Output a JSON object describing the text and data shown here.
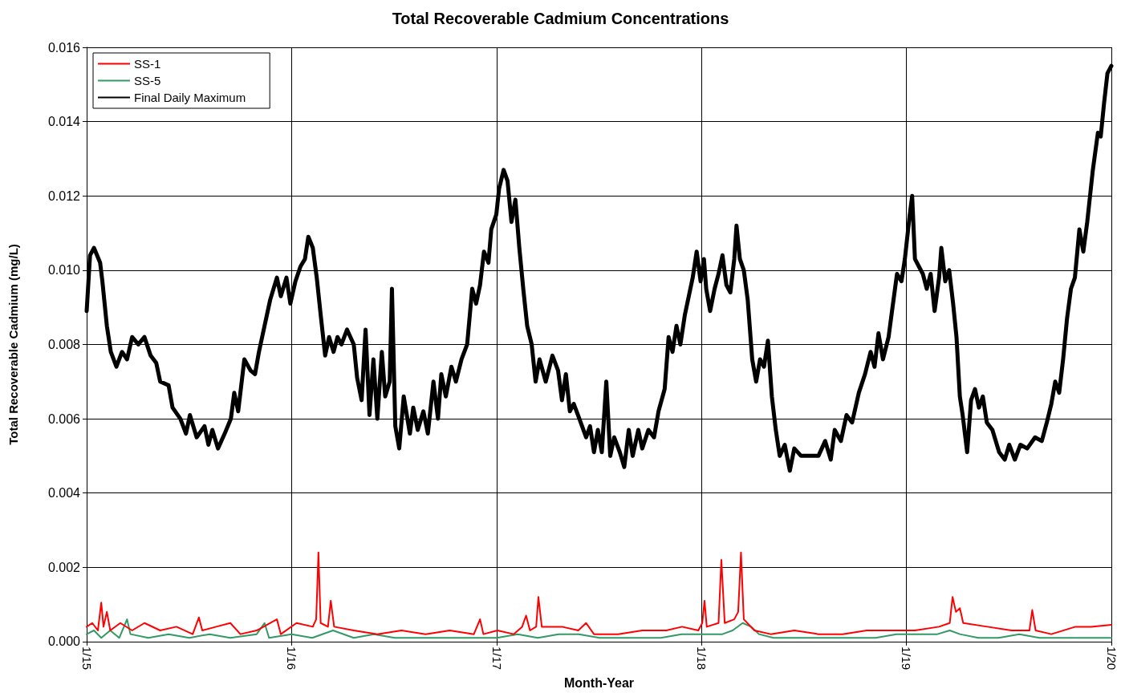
{
  "chart_data": {
    "type": "line",
    "title": "Total Recoverable Cadmium Concentrations",
    "xlabel": "Month-Year",
    "ylabel": "Total Recoverable Cadmium (mg/L)",
    "xlim": [
      "2015-01-01",
      "2020-01-01"
    ],
    "xticks": [
      {
        "value": "2015-01-01",
        "label": "1/15"
      },
      {
        "value": "2016-01-01",
        "label": "1/16"
      },
      {
        "value": "2017-01-01",
        "label": "1/17"
      },
      {
        "value": "2018-01-01",
        "label": "1/18"
      },
      {
        "value": "2019-01-01",
        "label": "1/19"
      },
      {
        "value": "2020-01-01",
        "label": "1/20"
      }
    ],
    "ylim": [
      0,
      0.016
    ],
    "yticks": [
      {
        "value": 0,
        "label": "0.000"
      },
      {
        "value": 0.002,
        "label": "0.002"
      },
      {
        "value": 0.004,
        "label": "0.004"
      },
      {
        "value": 0.006,
        "label": "0.006"
      },
      {
        "value": 0.008,
        "label": "0.008"
      },
      {
        "value": 0.01,
        "label": "0.010"
      },
      {
        "value": 0.012,
        "label": "0.012"
      },
      {
        "value": 0.014,
        "label": "0.014"
      },
      {
        "value": 0.016,
        "label": "0.016"
      }
    ],
    "grid": true,
    "legend": "top left",
    "marker": "none",
    "line_style": "solid",
    "series": [
      {
        "name": "SS-1",
        "color": "#ff0000",
        "x": [
          "2015-01-01",
          "2015-01-11",
          "2015-01-21",
          "2015-01-27",
          "2015-01-31",
          "2015-02-06",
          "2015-02-12",
          "2015-03-02",
          "2015-03-23",
          "2015-04-14",
          "2015-05-12",
          "2015-06-10",
          "2015-07-09",
          "2015-07-20",
          "2015-07-26",
          "2015-08-20",
          "2015-09-14",
          "2015-10-02",
          "2015-10-31",
          "2015-12-06",
          "2015-12-13",
          "2016-01-10",
          "2016-02-08",
          "2016-02-14",
          "2016-02-18",
          "2016-02-22",
          "2016-03-06",
          "2016-03-11",
          "2016-03-17",
          "2016-04-21",
          "2016-06-02",
          "2016-07-15",
          "2016-08-27",
          "2016-10-09",
          "2016-11-21",
          "2016-12-02",
          "2016-12-08",
          "2017-01-02",
          "2017-01-31",
          "2017-02-15",
          "2017-02-22",
          "2017-03-01",
          "2017-03-12",
          "2017-03-16",
          "2017-03-22",
          "2017-04-27",
          "2017-05-26",
          "2017-06-09",
          "2017-06-23",
          "2017-08-05",
          "2017-09-17",
          "2017-10-30",
          "2017-11-27",
          "2017-12-26",
          "2018-01-02",
          "2018-01-06",
          "2018-01-10",
          "2018-01-31",
          "2018-02-05",
          "2018-02-11",
          "2018-02-28",
          "2018-03-07",
          "2018-03-12",
          "2018-03-17",
          "2018-04-05",
          "2018-05-04",
          "2018-06-15",
          "2018-07-28",
          "2018-09-09",
          "2018-10-22",
          "2018-12-04",
          "2019-01-16",
          "2019-02-28",
          "2019-03-19",
          "2019-03-24",
          "2019-03-30",
          "2019-04-06",
          "2019-04-12",
          "2019-05-25",
          "2019-07-07",
          "2019-08-08",
          "2019-08-13",
          "2019-08-19",
          "2019-09-16",
          "2019-10-29",
          "2019-11-26",
          "2020-01-01"
        ],
        "values": [
          0.0004,
          0.0005,
          0.0003,
          0.00105,
          0.0004,
          0.0008,
          0.0003,
          0.0005,
          0.0003,
          0.0005,
          0.0003,
          0.0004,
          0.0002,
          0.00065,
          0.0003,
          0.0004,
          0.0005,
          0.0002,
          0.0003,
          0.0006,
          0.0002,
          0.0005,
          0.0004,
          0.0006,
          0.0024,
          0.0005,
          0.0004,
          0.0011,
          0.0004,
          0.0003,
          0.0002,
          0.0003,
          0.0002,
          0.0003,
          0.0002,
          0.0006,
          0.0002,
          0.0003,
          0.0002,
          0.0004,
          0.0007,
          0.0003,
          0.0004,
          0.0012,
          0.0004,
          0.0004,
          0.0003,
          0.0005,
          0.0002,
          0.0002,
          0.0003,
          0.0003,
          0.0004,
          0.0003,
          0.0005,
          0.0011,
          0.0004,
          0.0005,
          0.0022,
          0.0005,
          0.0006,
          0.0008,
          0.0024,
          0.0006,
          0.0003,
          0.0002,
          0.0003,
          0.0002,
          0.0002,
          0.0003,
          0.0003,
          0.0003,
          0.0004,
          0.0005,
          0.0012,
          0.0008,
          0.0009,
          0.0005,
          0.0004,
          0.0003,
          0.0003,
          0.00085,
          0.0003,
          0.0002,
          0.0004,
          0.0004,
          0.00045
        ]
      },
      {
        "name": "SS-5",
        "color": "#339966",
        "x": [
          "2015-01-01",
          "2015-01-14",
          "2015-01-27",
          "2015-02-12",
          "2015-02-28",
          "2015-03-14",
          "2015-03-20",
          "2015-04-21",
          "2015-05-27",
          "2015-07-03",
          "2015-08-08",
          "2015-09-14",
          "2015-10-31",
          "2015-11-14",
          "2015-11-22",
          "2016-01-01",
          "2016-02-07",
          "2016-03-15",
          "2016-04-21",
          "2016-05-27",
          "2016-07-03",
          "2016-08-08",
          "2016-09-14",
          "2016-10-20",
          "2016-11-26",
          "2017-01-01",
          "2017-02-07",
          "2017-03-15",
          "2017-04-21",
          "2017-05-27",
          "2017-07-03",
          "2017-08-08",
          "2017-09-14",
          "2017-10-20",
          "2017-11-26",
          "2018-01-01",
          "2018-02-07",
          "2018-02-25",
          "2018-03-15",
          "2018-03-30",
          "2018-04-13",
          "2018-05-09",
          "2018-06-14",
          "2018-07-21",
          "2018-08-26",
          "2018-10-02",
          "2018-11-07",
          "2018-12-14",
          "2019-01-19",
          "2019-02-25",
          "2019-03-19",
          "2019-04-06",
          "2019-05-09",
          "2019-06-14",
          "2019-07-21",
          "2019-08-26",
          "2019-10-02",
          "2019-11-07",
          "2019-12-14",
          "2020-01-01"
        ],
        "values": [
          0.0002,
          0.0003,
          0.0001,
          0.0003,
          0.0001,
          0.0006,
          0.0002,
          0.0001,
          0.0002,
          0.0001,
          0.0002,
          0.0001,
          0.0002,
          0.0005,
          0.0001,
          0.0002,
          0.0001,
          0.0003,
          0.0001,
          0.0002,
          0.0001,
          0.0001,
          0.0001,
          0.0001,
          0.0001,
          0.0001,
          0.0002,
          0.0001,
          0.0002,
          0.0002,
          0.0001,
          0.0001,
          0.0001,
          0.0001,
          0.0002,
          0.0002,
          0.0002,
          0.0003,
          0.0005,
          0.0004,
          0.0002,
          0.0001,
          0.0001,
          0.0001,
          0.0001,
          0.0001,
          0.0001,
          0.0002,
          0.0002,
          0.0002,
          0.0003,
          0.0002,
          0.0001,
          0.0001,
          0.0002,
          0.0001,
          0.0001,
          0.0001,
          0.0001,
          0.0001
        ]
      },
      {
        "name": "Final Daily Maximum",
        "color": "#000000",
        "x": [
          "2015-01-01",
          "2015-01-07",
          "2015-01-14",
          "2015-01-25",
          "2015-01-29",
          "2015-02-06",
          "2015-02-13",
          "2015-02-23",
          "2015-03-05",
          "2015-03-14",
          "2015-03-23",
          "2015-04-03",
          "2015-04-14",
          "2015-04-25",
          "2015-05-05",
          "2015-05-12",
          "2015-05-27",
          "2015-06-03",
          "2015-06-17",
          "2015-06-27",
          "2015-07-04",
          "2015-07-16",
          "2015-07-30",
          "2015-08-06",
          "2015-08-13",
          "2015-08-23",
          "2015-09-04",
          "2015-09-15",
          "2015-09-21",
          "2015-09-28",
          "2015-10-09",
          "2015-10-20",
          "2015-10-28",
          "2015-11-04",
          "2015-11-14",
          "2015-11-24",
          "2015-12-06",
          "2015-12-13",
          "2015-12-23",
          "2015-12-30",
          "2016-01-08",
          "2016-01-17",
          "2016-01-25",
          "2016-01-31",
          "2016-02-08",
          "2016-02-15",
          "2016-02-22",
          "2016-03-01",
          "2016-03-08",
          "2016-03-16",
          "2016-03-23",
          "2016-03-30",
          "2016-04-09",
          "2016-04-21",
          "2016-04-27",
          "2016-05-05",
          "2016-05-12",
          "2016-05-19",
          "2016-05-26",
          "2016-06-02",
          "2016-06-10",
          "2016-06-16",
          "2016-06-24",
          "2016-06-28",
          "2016-07-04",
          "2016-07-11",
          "2016-07-19",
          "2016-07-30",
          "2016-08-05",
          "2016-08-13",
          "2016-08-23",
          "2016-08-31",
          "2016-09-10",
          "2016-09-18",
          "2016-09-24",
          "2016-10-02",
          "2016-10-12",
          "2016-10-20",
          "2016-10-30",
          "2016-11-09",
          "2016-11-18",
          "2016-11-25",
          "2016-12-02",
          "2016-12-09",
          "2016-12-17",
          "2016-12-22",
          "2016-12-31",
          "2017-01-05",
          "2017-01-13",
          "2017-01-20",
          "2017-01-27",
          "2017-02-03",
          "2017-02-10",
          "2017-02-17",
          "2017-02-24",
          "2017-03-04",
          "2017-03-11",
          "2017-03-18",
          "2017-03-29",
          "2017-04-10",
          "2017-04-20",
          "2017-04-27",
          "2017-05-04",
          "2017-05-11",
          "2017-05-18",
          "2017-05-28",
          "2017-06-09",
          "2017-06-16",
          "2017-06-23",
          "2017-06-30",
          "2017-07-07",
          "2017-07-15",
          "2017-07-22",
          "2017-07-29",
          "2017-08-08",
          "2017-08-16",
          "2017-08-24",
          "2017-08-31",
          "2017-09-10",
          "2017-09-17",
          "2017-09-28",
          "2017-10-08",
          "2017-10-16",
          "2017-10-27",
          "2017-11-03",
          "2017-11-10",
          "2017-11-17",
          "2017-11-24",
          "2017-12-02",
          "2017-12-09",
          "2017-12-16",
          "2017-12-23",
          "2017-12-30",
          "2018-01-05",
          "2018-01-09",
          "2018-01-16",
          "2018-01-24",
          "2018-01-31",
          "2018-02-07",
          "2018-02-14",
          "2018-02-21",
          "2018-02-28",
          "2018-03-04",
          "2018-03-10",
          "2018-03-17",
          "2018-03-24",
          "2018-04-01",
          "2018-04-08",
          "2018-04-15",
          "2018-04-22",
          "2018-04-29",
          "2018-05-06",
          "2018-05-13",
          "2018-05-20",
          "2018-05-29",
          "2018-06-07",
          "2018-06-15",
          "2018-06-27",
          "2018-07-14",
          "2018-07-28",
          "2018-08-09",
          "2018-08-19",
          "2018-08-26",
          "2018-09-06",
          "2018-09-16",
          "2018-09-26",
          "2018-10-08",
          "2018-10-19",
          "2018-10-29",
          "2018-11-05",
          "2018-11-12",
          "2018-11-20",
          "2018-11-30",
          "2018-12-07",
          "2018-12-15",
          "2018-12-23",
          "2018-12-29",
          "2019-01-06",
          "2019-01-11",
          "2019-01-16",
          "2019-01-23",
          "2019-01-30",
          "2019-02-06",
          "2019-02-13",
          "2019-02-20",
          "2019-02-28",
          "2019-03-04",
          "2019-03-11",
          "2019-03-18",
          "2019-03-25",
          "2019-03-31",
          "2019-04-06",
          "2019-04-11",
          "2019-04-19",
          "2019-04-26",
          "2019-05-03",
          "2019-05-10",
          "2019-05-17",
          "2019-05-24",
          "2019-06-03",
          "2019-06-15",
          "2019-06-25",
          "2019-07-03",
          "2019-07-13",
          "2019-07-23",
          "2019-08-04",
          "2019-08-18",
          "2019-08-30",
          "2019-09-08",
          "2019-09-16",
          "2019-09-23",
          "2019-09-30",
          "2019-10-07",
          "2019-10-14",
          "2019-10-21",
          "2019-10-28",
          "2019-11-05",
          "2019-11-12",
          "2019-11-19",
          "2019-11-29",
          "2019-12-08",
          "2019-12-13",
          "2019-12-19",
          "2019-12-25",
          "2020-01-01"
        ],
        "values": [
          0.0089,
          0.0104,
          0.0106,
          0.0102,
          0.0097,
          0.0085,
          0.0078,
          0.0074,
          0.0078,
          0.0076,
          0.0082,
          0.008,
          0.0082,
          0.0077,
          0.0075,
          0.007,
          0.0069,
          0.0063,
          0.006,
          0.0056,
          0.0061,
          0.0055,
          0.0058,
          0.0053,
          0.0057,
          0.0052,
          0.0056,
          0.006,
          0.0067,
          0.0062,
          0.0076,
          0.0073,
          0.0072,
          0.0078,
          0.0085,
          0.0092,
          0.0098,
          0.0093,
          0.0098,
          0.0091,
          0.0097,
          0.0101,
          0.0103,
          0.0109,
          0.0106,
          0.0098,
          0.0088,
          0.0077,
          0.0082,
          0.0078,
          0.0082,
          0.008,
          0.0084,
          0.008,
          0.0071,
          0.0065,
          0.0084,
          0.0061,
          0.0076,
          0.006,
          0.0078,
          0.0066,
          0.007,
          0.0095,
          0.0058,
          0.0052,
          0.0066,
          0.0056,
          0.0063,
          0.0057,
          0.0062,
          0.0056,
          0.007,
          0.006,
          0.0072,
          0.0066,
          0.0074,
          0.007,
          0.0076,
          0.008,
          0.0095,
          0.0091,
          0.0096,
          0.0105,
          0.0102,
          0.0111,
          0.0115,
          0.0122,
          0.0127,
          0.0124,
          0.0113,
          0.0119,
          0.0106,
          0.0095,
          0.0085,
          0.008,
          0.007,
          0.0076,
          0.007,
          0.0077,
          0.0073,
          0.0065,
          0.0072,
          0.0062,
          0.0064,
          0.006,
          0.0055,
          0.0058,
          0.0051,
          0.0057,
          0.0051,
          0.007,
          0.005,
          0.0055,
          0.0051,
          0.0047,
          0.0057,
          0.005,
          0.0057,
          0.0052,
          0.0057,
          0.0055,
          0.0062,
          0.0068,
          0.0082,
          0.0078,
          0.0085,
          0.008,
          0.0088,
          0.0093,
          0.0098,
          0.0105,
          0.0097,
          0.0103,
          0.0095,
          0.0089,
          0.0095,
          0.0099,
          0.0104,
          0.0096,
          0.0094,
          0.0103,
          0.0112,
          0.0103,
          0.01,
          0.0092,
          0.0076,
          0.007,
          0.0076,
          0.0074,
          0.0081,
          0.0066,
          0.0057,
          0.005,
          0.0053,
          0.0046,
          0.0052,
          0.005,
          0.005,
          0.005,
          0.0054,
          0.0049,
          0.0057,
          0.0054,
          0.0061,
          0.0059,
          0.0067,
          0.0072,
          0.0078,
          0.0074,
          0.0083,
          0.0076,
          0.0082,
          0.009,
          0.0099,
          0.0097,
          0.0103,
          0.0114,
          0.012,
          0.0103,
          0.0101,
          0.0099,
          0.0095,
          0.0099,
          0.0089,
          0.0098,
          0.0106,
          0.0097,
          0.01,
          0.0091,
          0.0082,
          0.0066,
          0.0061,
          0.0051,
          0.0065,
          0.0068,
          0.0063,
          0.0066,
          0.0059,
          0.0057,
          0.0051,
          0.0049,
          0.0053,
          0.0049,
          0.0053,
          0.0052,
          0.0055,
          0.0054,
          0.0059,
          0.0064,
          0.007,
          0.0067,
          0.0076,
          0.0087,
          0.0095,
          0.0098,
          0.0111,
          0.0105,
          0.0113,
          0.0127,
          0.0137,
          0.0136,
          0.0145,
          0.0153,
          0.0155
        ]
      }
    ]
  }
}
